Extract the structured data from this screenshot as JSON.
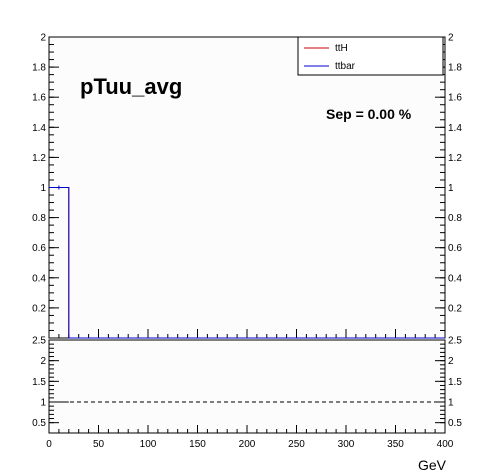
{
  "chart_data": [
    {
      "type": "line",
      "title": "pTuu_avg",
      "annotation": "Sep = 0.00 %",
      "xlim": [
        0,
        400
      ],
      "ylim": [
        0,
        2
      ],
      "y_ticks": [
        "0.2",
        "0.4",
        "0.6",
        "0.8",
        "1",
        "1.2",
        "1.4",
        "1.6",
        "1.8",
        "2"
      ],
      "legend_position": "top-right",
      "series": [
        {
          "name": "ttH",
          "color": "#cc0000",
          "x": [
            0,
            20,
            20,
            400
          ],
          "y": [
            1,
            1,
            0,
            0
          ]
        },
        {
          "name": "ttbar",
          "color": "#0000cc",
          "x": [
            0,
            20,
            20,
            400
          ],
          "y": [
            1,
            1,
            0,
            0
          ]
        }
      ],
      "grid": false
    },
    {
      "type": "line",
      "xlabel": "GeV",
      "xlim": [
        0,
        400
      ],
      "ylim": [
        0.25,
        2.5
      ],
      "x_ticks": [
        "0",
        "50",
        "100",
        "150",
        "200",
        "250",
        "300",
        "350",
        "400"
      ],
      "y_ticks": [
        "0.5",
        "1",
        "1.5",
        "2",
        "2.5"
      ],
      "reference_line": 1,
      "series": [
        {
          "name": "",
          "x": [
            0,
            20
          ],
          "y": [
            1,
            1
          ]
        }
      ],
      "grid": false
    }
  ]
}
